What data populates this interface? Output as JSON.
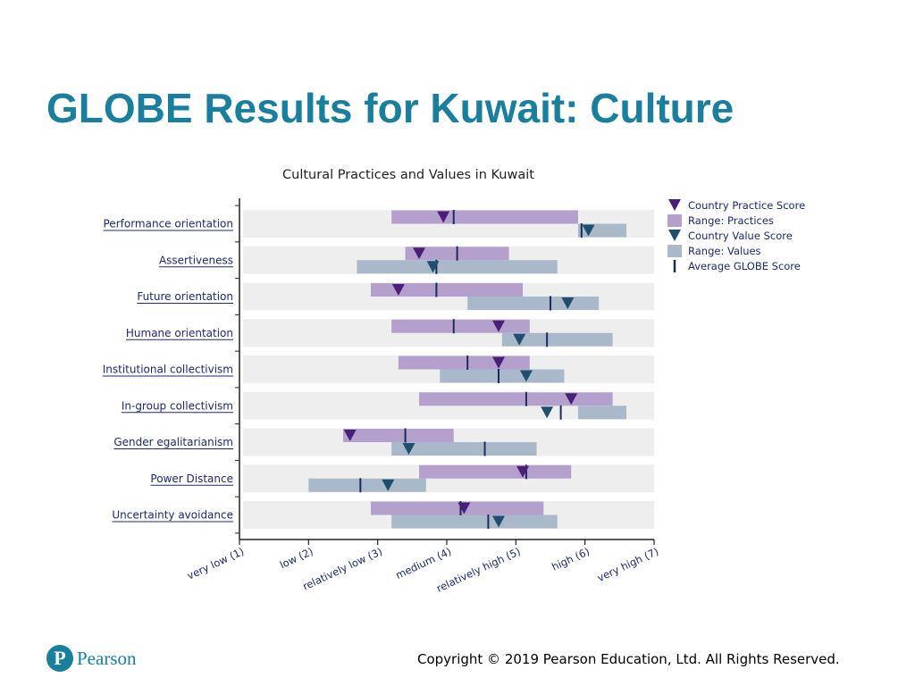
{
  "slide": {
    "title": "GLOBE Results for Kuwait: Culture",
    "logo_mark": "P",
    "logo_text": "Pearson",
    "copyright": "Copyright © 2019 Pearson Education, Ltd. All Rights Reserved."
  },
  "chart_data": {
    "type": "range-bar",
    "title": "Cultural Practices and Values in Kuwait",
    "xlabel": "",
    "ylabel": "",
    "xlim": [
      1,
      7
    ],
    "x_ticks": [
      1,
      2,
      3,
      4,
      5,
      6,
      7
    ],
    "x_tick_labels": [
      "very low (1)",
      "low (2)",
      "relatively low (3)",
      "medium (4)",
      "relatively high (5)",
      "high (6)",
      "very high (7)"
    ],
    "legend_position": "top-right",
    "legend": [
      {
        "key": "practice_score",
        "label": "Country Practice Score"
      },
      {
        "key": "practice_range",
        "label": "Range: Practices"
      },
      {
        "key": "value_score",
        "label": "Country Value Score"
      },
      {
        "key": "value_range",
        "label": "Range: Values"
      },
      {
        "key": "globe_avg",
        "label": "Average GLOBE Score"
      }
    ],
    "colors": {
      "practice_range": "#b4a0cc",
      "practice_marker": "#4a1f78",
      "value_range": "#a9b9ca",
      "value_marker": "#1f4e6e",
      "avg_tick": "#1c2a5c",
      "row_band": "#eeeeee",
      "axis": "#222222",
      "category_label": "#1c2a6c"
    },
    "categories": [
      "Performance orientation",
      "Assertiveness",
      "Future orientation",
      "Humane orientation",
      "Institutional collectivism",
      "In-group collectivism",
      "Gender egalitarianism",
      "Power Distance",
      "Uncertainty avoidance"
    ],
    "practices": {
      "range": [
        [
          3.2,
          5.9
        ],
        [
          3.4,
          4.9
        ],
        [
          2.9,
          5.1
        ],
        [
          3.2,
          5.2
        ],
        [
          3.3,
          5.2
        ],
        [
          3.6,
          6.4
        ],
        [
          2.5,
          4.1
        ],
        [
          3.6,
          5.8
        ],
        [
          2.9,
          5.4
        ]
      ],
      "score": [
        3.95,
        3.6,
        3.3,
        4.75,
        4.75,
        5.8,
        2.6,
        5.1,
        4.25
      ],
      "globe_avg": [
        4.1,
        4.15,
        3.85,
        4.1,
        4.3,
        5.15,
        3.4,
        5.15,
        4.2
      ]
    },
    "values": {
      "range": [
        [
          5.9,
          6.6
        ],
        [
          2.7,
          5.6
        ],
        [
          4.3,
          6.2
        ],
        [
          4.8,
          6.4
        ],
        [
          3.9,
          5.7
        ],
        [
          5.9,
          6.6
        ],
        [
          3.2,
          5.3
        ],
        [
          2.0,
          3.7
        ],
        [
          3.2,
          5.6
        ]
      ],
      "score": [
        6.05,
        3.8,
        5.75,
        5.05,
        5.15,
        5.45,
        3.45,
        3.15,
        4.75
      ],
      "globe_avg": [
        5.95,
        3.85,
        5.5,
        5.45,
        4.75,
        5.65,
        4.55,
        2.75,
        4.6
      ]
    }
  }
}
